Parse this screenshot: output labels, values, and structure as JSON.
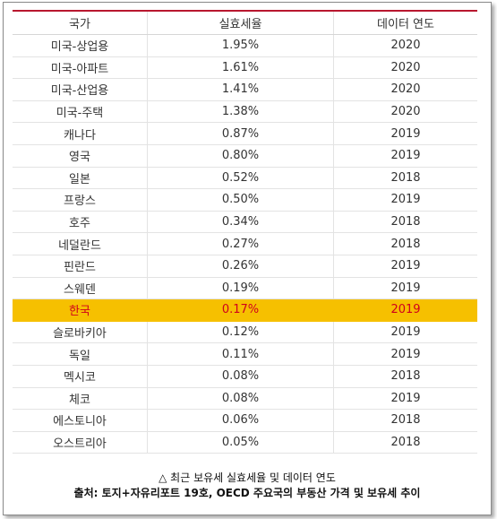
{
  "table": {
    "headers": [
      "국가",
      "실효세율",
      "데이터 연도"
    ],
    "rows": [
      {
        "country": "미국-상업용",
        "rate": "1.95%",
        "year": "2020"
      },
      {
        "country": "미국-아파트",
        "rate": "1.61%",
        "year": "2020"
      },
      {
        "country": "미국-산업용",
        "rate": "1.41%",
        "year": "2020"
      },
      {
        "country": "미국-주택",
        "rate": "1.38%",
        "year": "2020"
      },
      {
        "country": "캐나다",
        "rate": "0.87%",
        "year": "2019"
      },
      {
        "country": "영국",
        "rate": "0.80%",
        "year": "2019"
      },
      {
        "country": "일본",
        "rate": "0.52%",
        "year": "2018"
      },
      {
        "country": "프랑스",
        "rate": "0.50%",
        "year": "2019"
      },
      {
        "country": "호주",
        "rate": "0.34%",
        "year": "2018"
      },
      {
        "country": "네덜란드",
        "rate": "0.27%",
        "year": "2018"
      },
      {
        "country": "핀란드",
        "rate": "0.26%",
        "year": "2019"
      },
      {
        "country": "스웨덴",
        "rate": "0.19%",
        "year": "2019"
      },
      {
        "country": "한국",
        "rate": "0.17%",
        "year": "2019",
        "highlight": true
      },
      {
        "country": "슬로바키아",
        "rate": "0.12%",
        "year": "2019"
      },
      {
        "country": "독일",
        "rate": "0.11%",
        "year": "2019"
      },
      {
        "country": "멕시코",
        "rate": "0.08%",
        "year": "2018"
      },
      {
        "country": "체코",
        "rate": "0.08%",
        "year": "2019"
      },
      {
        "country": "에스토니아",
        "rate": "0.06%",
        "year": "2018"
      },
      {
        "country": "오스트리아",
        "rate": "0.05%",
        "year": "2018"
      }
    ]
  },
  "caption": {
    "line1": "△ 최근 보유세 실효세율 및 데이터 연도",
    "line2": "출처: 토지+자유리포트 19호, OECD 주요국의 부동산 가격 및 보유세 추이"
  },
  "colors": {
    "header_rule": "#b8172f",
    "highlight_bg": "#f6c000",
    "highlight_text": "#d0001c"
  }
}
